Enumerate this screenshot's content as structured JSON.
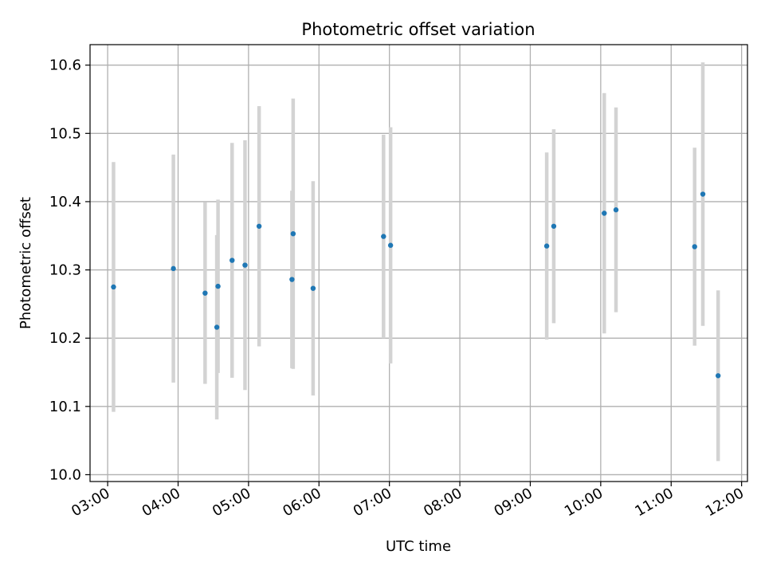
{
  "chart_data": {
    "type": "scatter",
    "title": "Photometric offset variation",
    "xlabel": "UTC time",
    "ylabel": "Photometric offset",
    "x_axis": {
      "kind": "time",
      "range": [
        "02:45",
        "12:05"
      ],
      "ticks": [
        "03:00",
        "04:00",
        "05:00",
        "06:00",
        "07:00",
        "08:00",
        "09:00",
        "10:00",
        "11:00",
        "12:00"
      ]
    },
    "y_axis": {
      "range": [
        9.99,
        10.63
      ],
      "ticks": [
        "10.0",
        "10.1",
        "10.2",
        "10.3",
        "10.4",
        "10.5",
        "10.6"
      ]
    },
    "grid": true,
    "marker_color": "#1f77b4",
    "errorbar_color": "#d3d3d3",
    "points": [
      {
        "x": "03:05",
        "y": 10.275,
        "err": 0.183
      },
      {
        "x": "03:56",
        "y": 10.302,
        "err": 0.167
      },
      {
        "x": "04:23",
        "y": 10.266,
        "err": 0.133
      },
      {
        "x": "04:33",
        "y": 10.216,
        "err": 0.135
      },
      {
        "x": "04:34",
        "y": 10.276,
        "err": 0.127
      },
      {
        "x": "04:46",
        "y": 10.314,
        "err": 0.172
      },
      {
        "x": "04:57",
        "y": 10.307,
        "err": 0.183
      },
      {
        "x": "05:09",
        "y": 10.364,
        "err": 0.176
      },
      {
        "x": "05:37",
        "y": 10.286,
        "err": 0.13
      },
      {
        "x": "05:38",
        "y": 10.353,
        "err": 0.198
      },
      {
        "x": "05:55",
        "y": 10.273,
        "err": 0.157
      },
      {
        "x": "06:55",
        "y": 10.349,
        "err": 0.149
      },
      {
        "x": "07:01",
        "y": 10.336,
        "err": 0.173
      },
      {
        "x": "09:14",
        "y": 10.335,
        "err": 0.137
      },
      {
        "x": "09:20",
        "y": 10.364,
        "err": 0.142
      },
      {
        "x": "10:03",
        "y": 10.383,
        "err": 0.176
      },
      {
        "x": "10:13",
        "y": 10.388,
        "err": 0.15
      },
      {
        "x": "11:20",
        "y": 10.334,
        "err": 0.145
      },
      {
        "x": "11:27",
        "y": 10.411,
        "err": 0.193
      },
      {
        "x": "11:40",
        "y": 10.145,
        "err": 0.125
      }
    ]
  }
}
